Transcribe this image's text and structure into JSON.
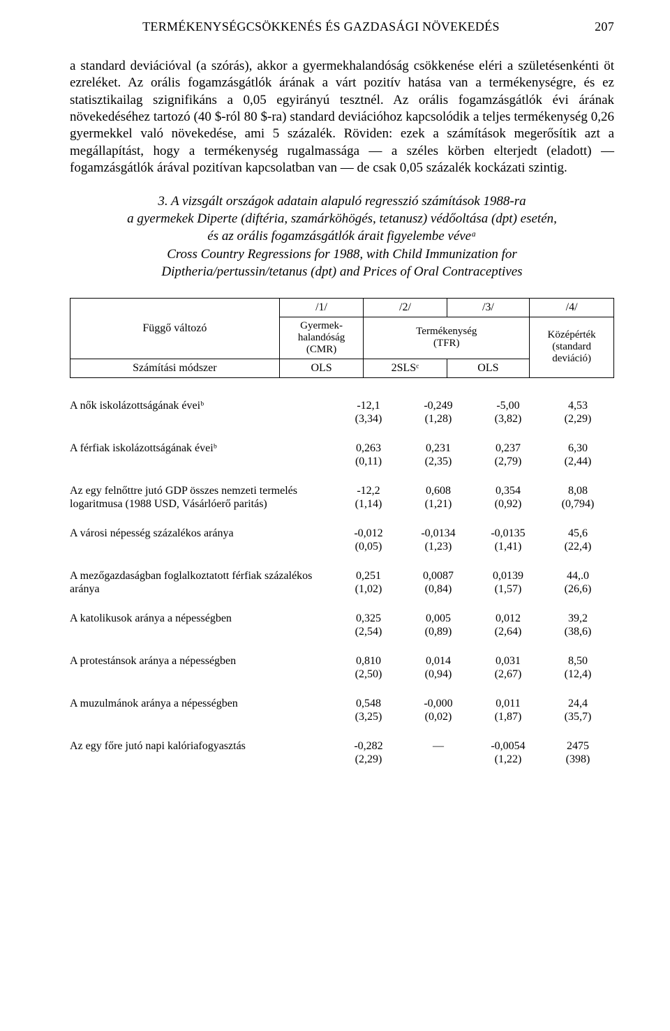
{
  "page_number": "207",
  "running_title": "TERMÉKENYSÉGCSÖKKENÉS ÉS GAZDASÁGI NÖVEKEDÉS",
  "paragraph_1": "a standard deviációval (a szórás), akkor a gyermekhalandóság csökkenése eléri a születésenkénti öt ezreléket. Az orális fogamzásgátlók árának a várt pozitív hatása van a termékenységre, és ez statisztikailag szignifikáns a 0,05 egyirányú tesztnél. Az orális fogamzásgátlók évi árának növekedéséhez tartozó (40 $-ról 80 $-ra) standard deviációhoz kapcsolódik a teljes termékenység 0,26 gyermekkel való növekedése, ami 5 százalék. Röviden: ezek a számítások megerősítik azt a megállapítást, hogy a termékenység rugalmassága — a széles körben elterjedt (eladott) — fogamzásgátlók árával pozitívan kapcsolatban van — de csak 0,05 százalék kockázati szintig.",
  "section_heading_number": "3.",
  "section_heading_line1": "A vizsgált országok adatain alapuló regresszió számítások 1988-ra",
  "section_heading_line2": "a gyermekek Diperte (diftéria, szamárköhögés, tetanusz) védőoltása (dpt) esetén,",
  "section_heading_line3": "és az orális fogamzásgátlók árait figyelembe véveᵃ",
  "section_heading_en1": "Cross Country Regressions for 1988, with Child Immunization for",
  "section_heading_en2": "Diptheria/pertussin/tetanus (dpt) and Prices of Oral Contraceptives",
  "table_header": {
    "dep_var_label": "Függő változó",
    "method_label": "Számítási módszer",
    "col_num_1": "/1/",
    "col_num_2": "/2/",
    "col_num_3": "/3/",
    "col_num_4": "/4/",
    "col1_label_l1": "Gyermek-",
    "col1_label_l2": "halandóság",
    "col1_label_l3": "(CMR)",
    "col23_label_l1": "Termékenység",
    "col23_label_l2": "(TFR)",
    "col4_label_l1": "Középérték",
    "col4_label_l2": "(standard",
    "col4_label_l3": "deviáció)",
    "method_1": "OLS",
    "method_2": "2SLSᶜ",
    "method_3": "OLS"
  },
  "rows": [
    {
      "label": "A nők iskolázottságának éveiᵇ",
      "c1v": "-12,1",
      "c1s": "(3,34)",
      "c2v": "-0,249",
      "c2s": "(1,28)",
      "c3v": "-5,00",
      "c3s": "(3,82)",
      "c4v": "4,53",
      "c4s": "(2,29)"
    },
    {
      "label": "A férfiak iskolázottságának éveiᵇ",
      "c1v": "0,263",
      "c1s": "(0,11)",
      "c2v": "0,231",
      "c2s": "(2,35)",
      "c3v": "0,237",
      "c3s": "(2,79)",
      "c4v": "6,30",
      "c4s": "(2,44)"
    },
    {
      "label": "Az egy felnőttre jutó GDP összes nemzeti termelés logaritmusa (1988 USD, Vásárlóerő paritás)",
      "c1v": "-12,2",
      "c1s": "(1,14)",
      "c2v": "0,608",
      "c2s": "(1,21)",
      "c3v": "0,354",
      "c3s": "(0,92)",
      "c4v": "8,08",
      "c4s": "(0,794)"
    },
    {
      "label": "A városi népesség százalékos aránya",
      "c1v": "-0,012",
      "c1s": "(0,05)",
      "c2v": "-0,0134",
      "c2s": "(1,23)",
      "c3v": "-0,0135",
      "c3s": "(1,41)",
      "c4v": "45,6",
      "c4s": "(22,4)"
    },
    {
      "label": "A mezőgazdaságban foglalkoztatott férfiak százalékos aránya",
      "c1v": "0,251",
      "c1s": "(1,02)",
      "c2v": "0,0087",
      "c2s": "(0,84)",
      "c3v": "0,0139",
      "c3s": "(1,57)",
      "c4v": "44,.0",
      "c4s": "(26,6)"
    },
    {
      "label": "A katolikusok aránya a népességben",
      "c1v": "0,325",
      "c1s": "(2,54)",
      "c2v": "0,005",
      "c2s": "(0,89)",
      "c3v": "0,012",
      "c3s": "(2,64)",
      "c4v": "39,2",
      "c4s": "(38,6)"
    },
    {
      "label": "A protestánsok aránya a népességben",
      "c1v": "0,810",
      "c1s": "(2,50)",
      "c2v": "0,014",
      "c2s": "(0,94)",
      "c3v": "0,031",
      "c3s": "(2,67)",
      "c4v": "8,50",
      "c4s": "(12,4)"
    },
    {
      "label": "A muzulmánok aránya a népességben",
      "c1v": "0,548",
      "c1s": "(3,25)",
      "c2v": "-0,000",
      "c2s": "(0,02)",
      "c3v": "0,011",
      "c3s": "(1,87)",
      "c4v": "24,4",
      "c4s": "(35,7)"
    },
    {
      "label": "Az egy főre jutó napi kalóriafogyasztás",
      "c1v": "-0,282",
      "c1s": "(2,29)",
      "c2v": "—",
      "c2s": "",
      "c3v": "-0,0054",
      "c3s": "(1,22)",
      "c4v": "2475",
      "c4s": "(398)"
    }
  ]
}
